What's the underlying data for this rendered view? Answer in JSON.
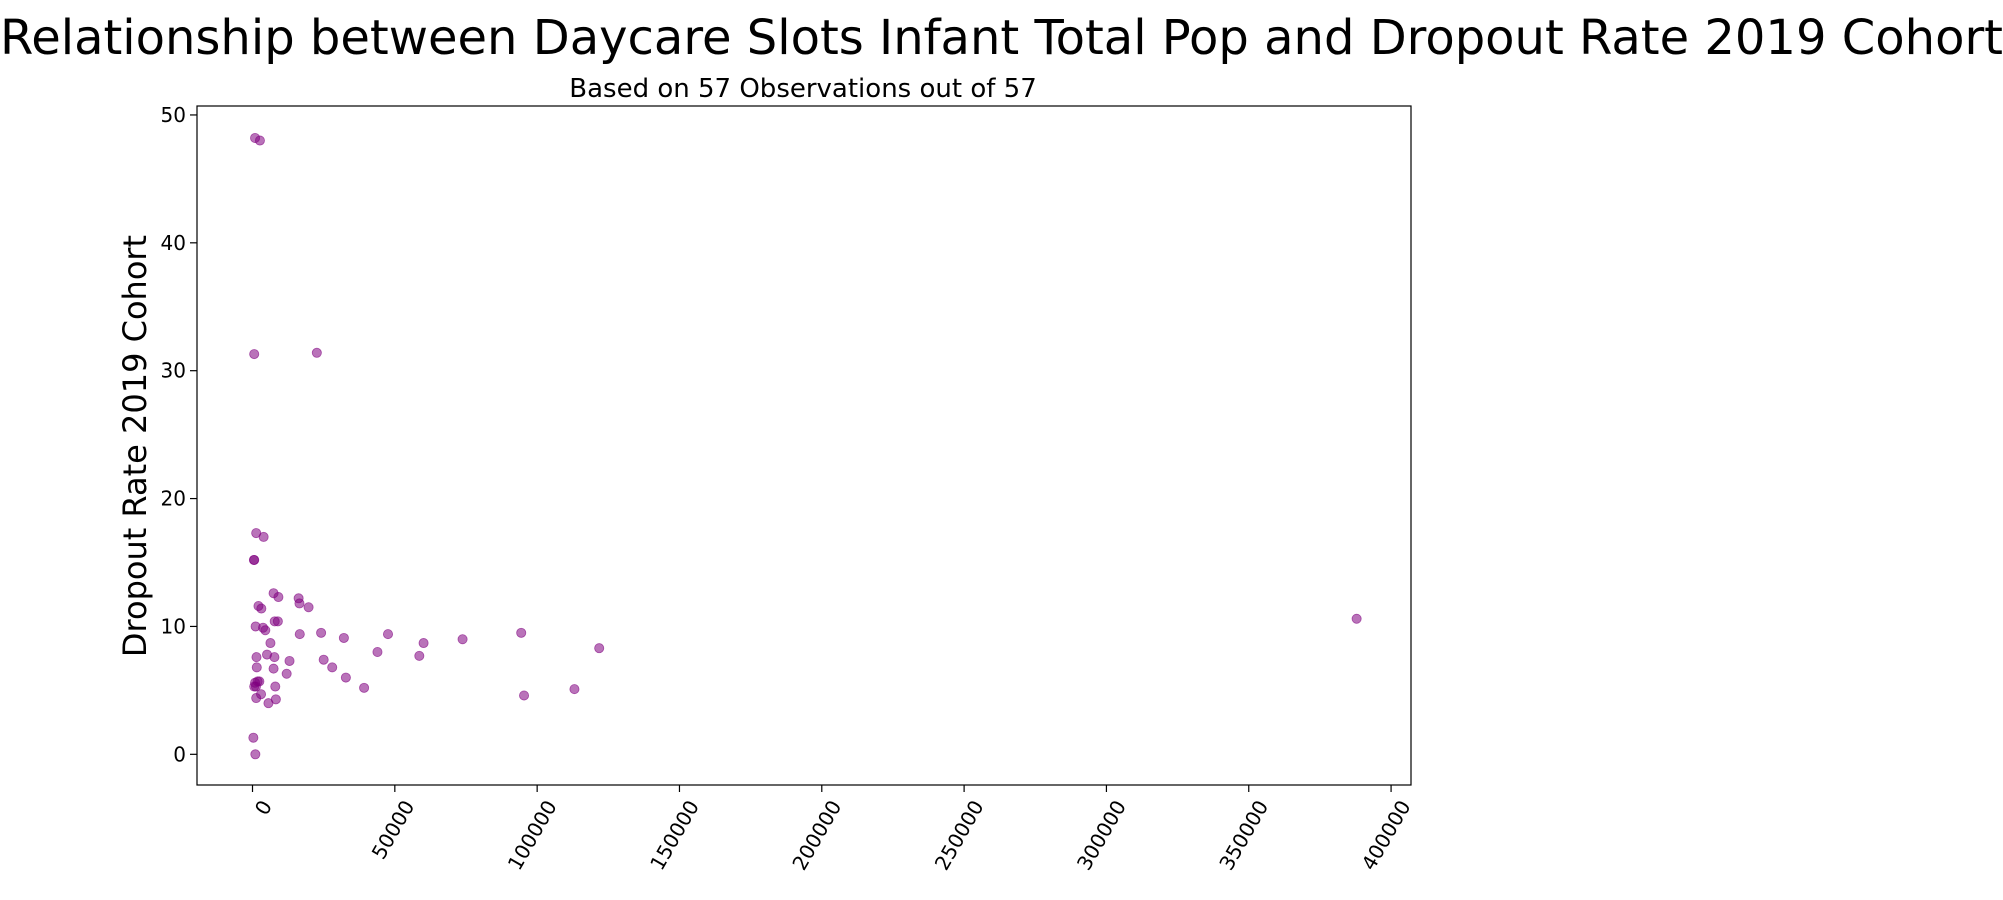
{
  "chart_data": {
    "type": "scatter",
    "title": "Relationship between Daycare Slots Infant Total Pop and Dropout Rate 2019 Cohort",
    "subtitle": "Based on 57 Observations out of 57",
    "xlabel": "",
    "ylabel": "Dropout Rate 2019 Cohort",
    "xlim": [
      -19500,
      407000
    ],
    "ylim": [
      -2.4,
      50.7
    ],
    "xticks": [
      "0",
      "50000",
      "100000",
      "150000",
      "200000",
      "250000",
      "300000",
      "350000",
      "400000"
    ],
    "yticks": [
      "0",
      "10",
      "20",
      "30",
      "40",
      "50"
    ],
    "grid": false,
    "legend": "none",
    "colors": {
      "marker": "#800080",
      "axis": "#000000",
      "background": "#ffffff"
    },
    "series": [
      {
        "x": [
          900,
          2600,
          600,
          22600,
          1300,
          3900,
          600,
          500,
          7400,
          16200,
          9100,
          16500,
          19700,
          2100,
          3100,
          7800,
          8900,
          1100,
          3700,
          4500,
          24100,
          16600,
          47600,
          32100,
          6300,
          60100,
          73800,
          94400,
          121800,
          387900,
          1400,
          5100,
          7700,
          13000,
          25000,
          43900,
          58600,
          7400,
          1500,
          28000,
          12000,
          2400,
          1800,
          900,
          32800,
          8000,
          1200,
          39200,
          3000,
          113100,
          95400,
          8200,
          1300,
          5600,
          600,
          300,
          1000
        ],
        "y": [
          48.2,
          48.0,
          31.3,
          31.4,
          17.3,
          17.0,
          15.2,
          15.2,
          12.6,
          12.2,
          12.3,
          11.8,
          11.5,
          11.6,
          11.4,
          10.4,
          10.4,
          10.0,
          9.9,
          9.7,
          9.5,
          9.4,
          9.4,
          9.1,
          8.7,
          8.7,
          9.0,
          9.5,
          8.3,
          10.6,
          7.6,
          7.8,
          7.6,
          7.3,
          7.4,
          8.0,
          7.7,
          6.7,
          6.8,
          6.8,
          6.3,
          5.7,
          5.7,
          5.6,
          6.0,
          5.3,
          5.3,
          5.2,
          4.7,
          5.1,
          4.6,
          4.3,
          4.4,
          4.0,
          5.3,
          1.3,
          0.0
        ]
      }
    ]
  }
}
